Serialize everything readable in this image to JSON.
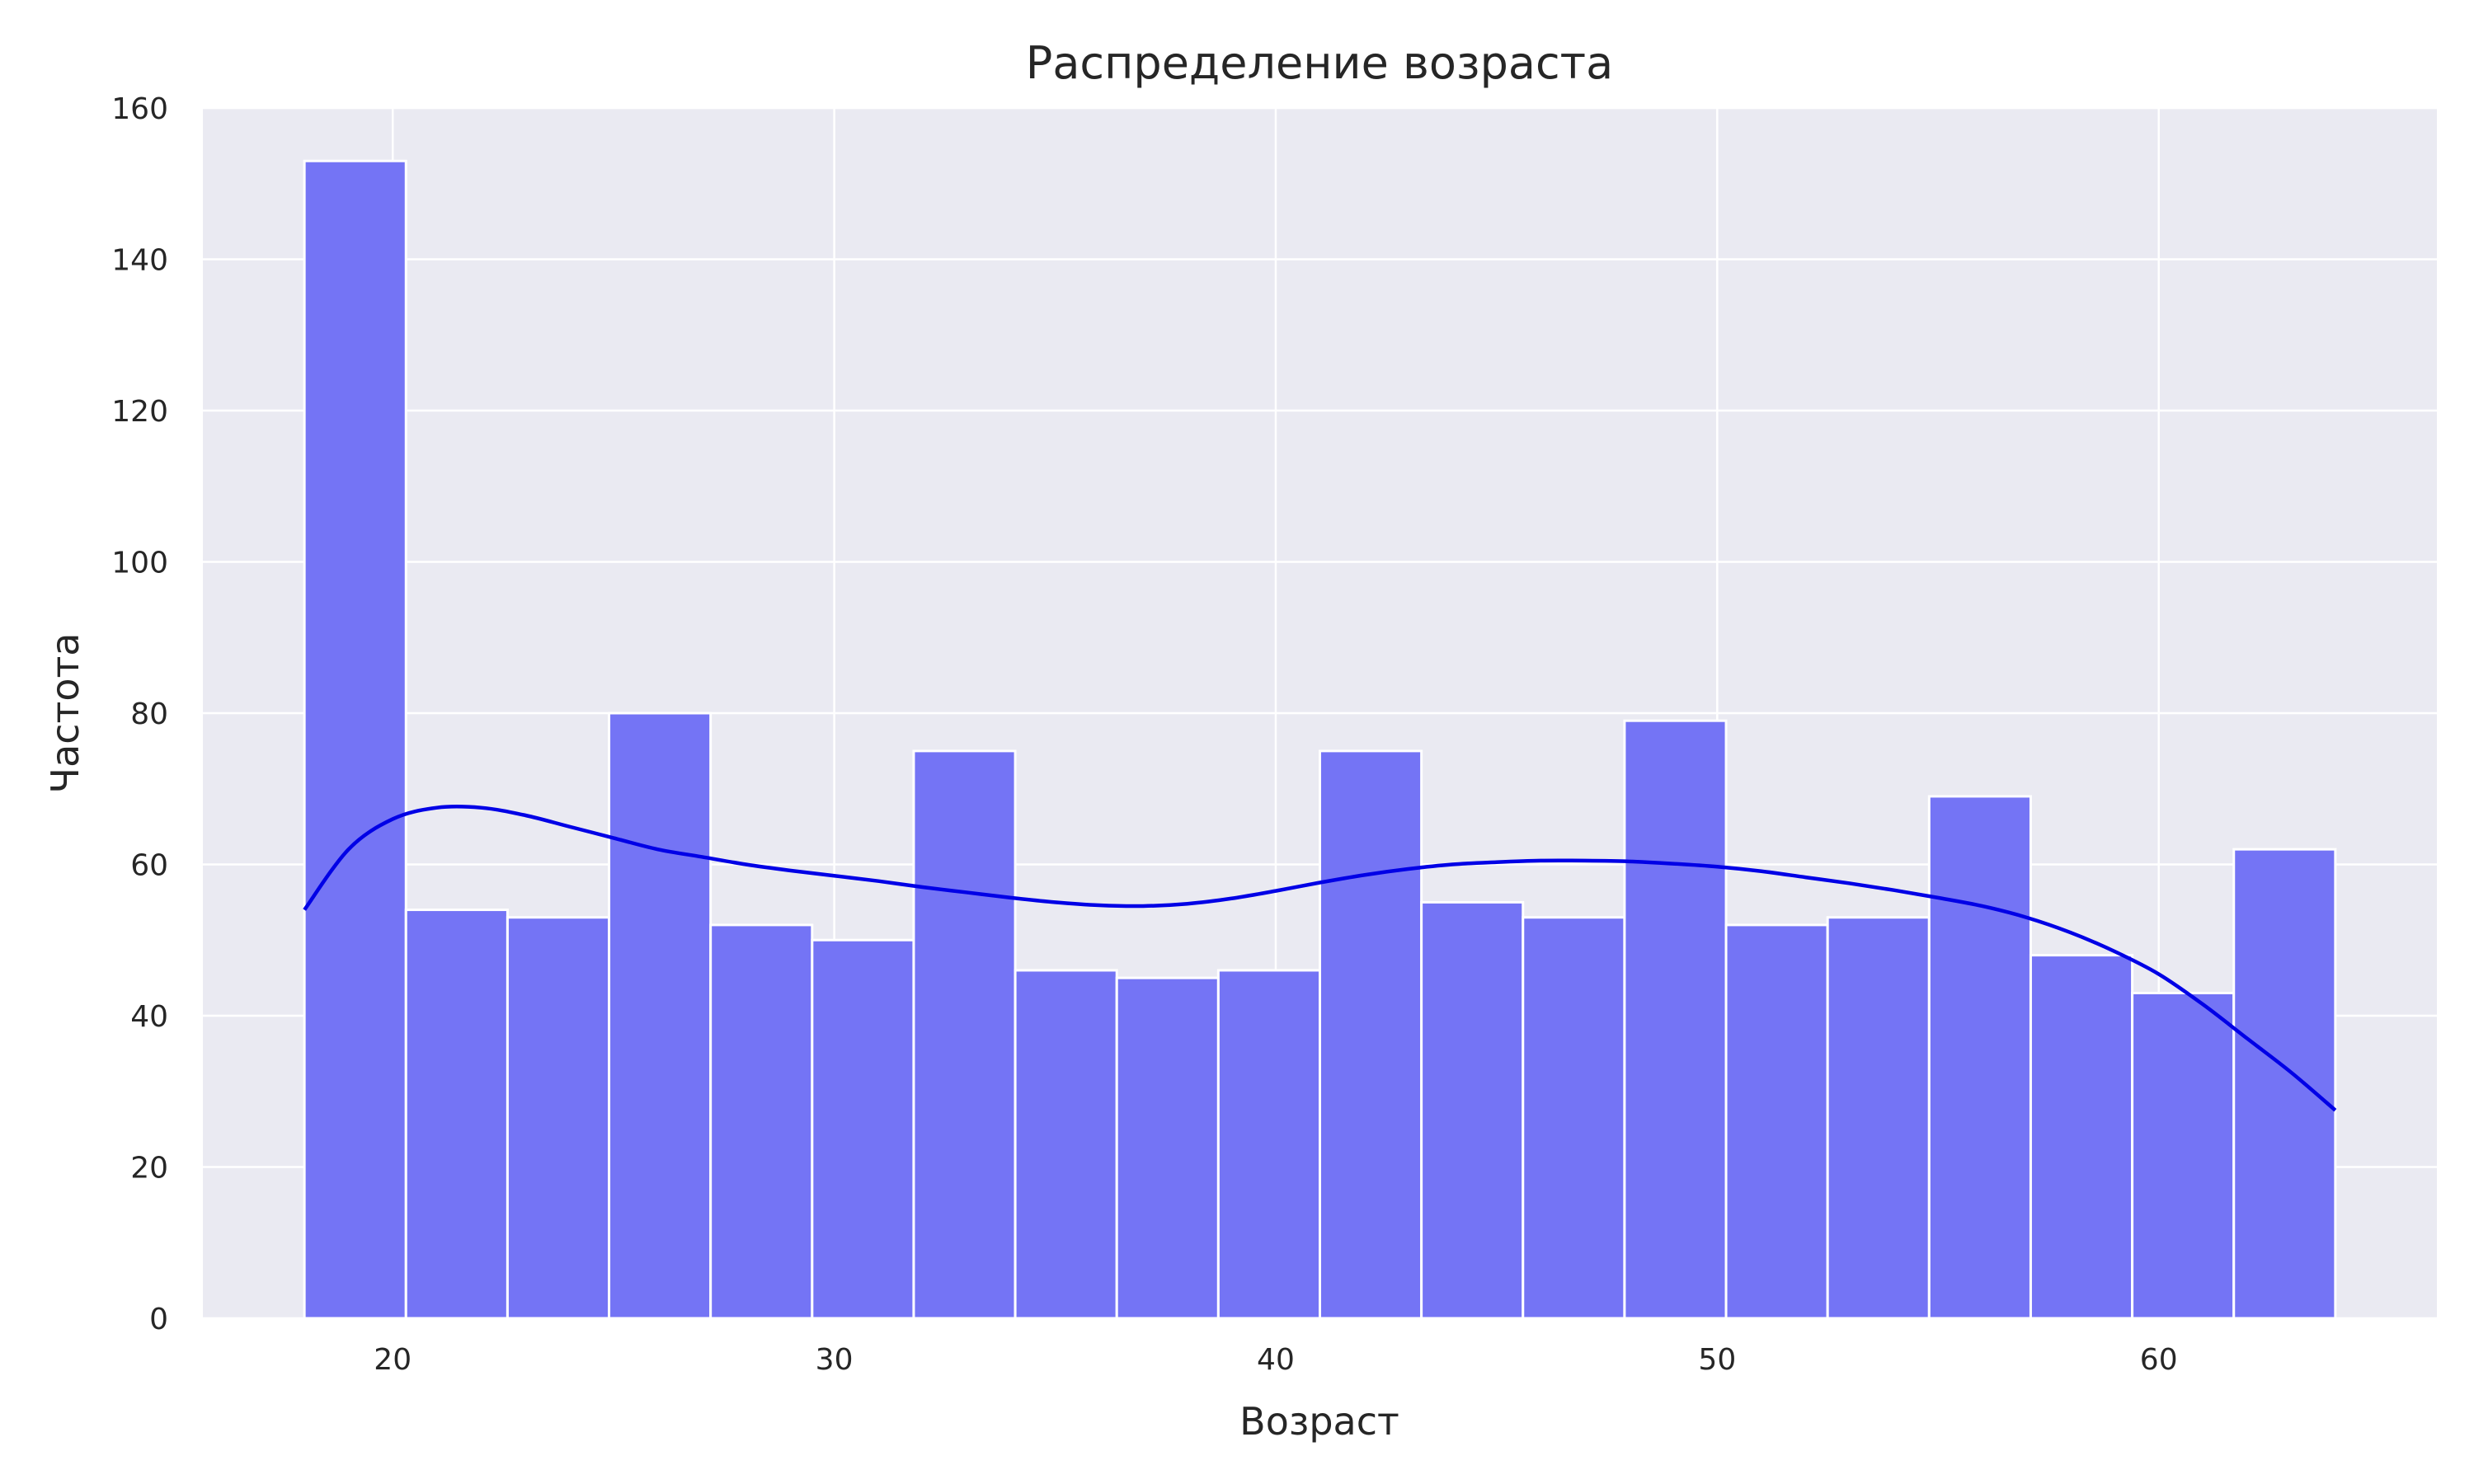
{
  "chart_data": {
    "type": "bar",
    "title": "Распределение возраста",
    "xlabel": "Возраст",
    "ylabel": "Частота",
    "xlim": [
      15.7,
      66.3
    ],
    "ylim": [
      0,
      160
    ],
    "x_ticks": [
      20,
      30,
      40,
      50,
      60
    ],
    "y_ticks": [
      0,
      20,
      40,
      60,
      80,
      100,
      120,
      140,
      160
    ],
    "grid": true,
    "bin_edges": [
      18,
      20.3,
      22.6,
      24.9,
      27.2,
      29.5,
      31.8,
      34.1,
      36.4,
      38.7,
      41,
      43.3,
      45.6,
      47.9,
      50.2,
      52.5,
      54.8,
      57.1,
      59.4,
      61.7,
      64
    ],
    "counts": [
      153,
      54,
      53,
      80,
      52,
      50,
      75,
      46,
      45,
      46,
      75,
      55,
      53,
      79,
      52,
      53,
      69,
      48,
      43,
      62
    ],
    "kde": {
      "x": [
        18,
        19,
        20,
        21,
        22,
        23,
        24,
        25,
        26,
        27,
        28,
        29,
        30,
        31,
        32,
        33,
        34,
        35,
        36,
        37,
        38,
        39,
        40,
        41,
        42,
        43,
        44,
        45,
        46,
        47,
        48,
        49,
        50,
        51,
        52,
        53,
        54,
        55,
        56,
        57,
        58,
        59,
        60,
        61,
        62,
        63,
        64
      ],
      "y": [
        54,
        62,
        66,
        67.5,
        67.5,
        66.5,
        65,
        63.5,
        62,
        61,
        60,
        59.2,
        58.5,
        57.8,
        57,
        56.3,
        55.6,
        55,
        54.6,
        54.5,
        54.8,
        55.5,
        56.5,
        57.6,
        58.6,
        59.4,
        60,
        60.3,
        60.5,
        60.5,
        60.4,
        60.1,
        59.7,
        59.1,
        58.3,
        57.5,
        56.6,
        55.6,
        54.5,
        53,
        51,
        48.5,
        45.5,
        41.5,
        37,
        32.5,
        27.5
      ]
    },
    "colors": {
      "bar_fill": "#7474f5",
      "bar_edge": "#ffffff",
      "kde_line": "#0000e6",
      "plot_bg": "#eaeaf2",
      "grid": "#ffffff",
      "text": "#262626"
    }
  }
}
